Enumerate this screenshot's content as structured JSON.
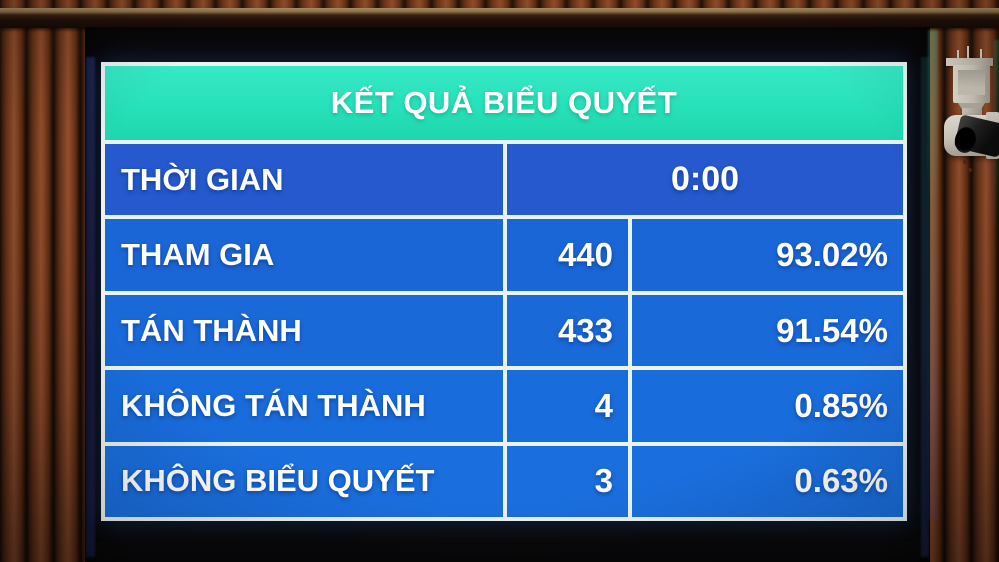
{
  "board": {
    "title": "KẾT QUẢ BIỂU QUYẾT",
    "time": {
      "label": "THỜI GIAN",
      "value": "0:00"
    },
    "results": [
      {
        "label": "THAM GIA",
        "count": "440",
        "percent": "93.02%"
      },
      {
        "label": "TÁN THÀNH",
        "count": "433",
        "percent": "91.54%"
      },
      {
        "label": "KHÔNG TÁN THÀNH",
        "count": "4",
        "percent": "0.85%"
      },
      {
        "label": "KHÔNG BIỂU QUYẾT",
        "count": "3",
        "percent": "0.63%"
      }
    ],
    "colors": {
      "header_bg": "#27E1BA",
      "cell_bg": "#1B68D8",
      "grid_lines": "#E9F3EF",
      "text": "#FFFFFF"
    }
  },
  "scene": {
    "wall": "wooden-slat-wall",
    "camera": "ptz-security-camera"
  }
}
